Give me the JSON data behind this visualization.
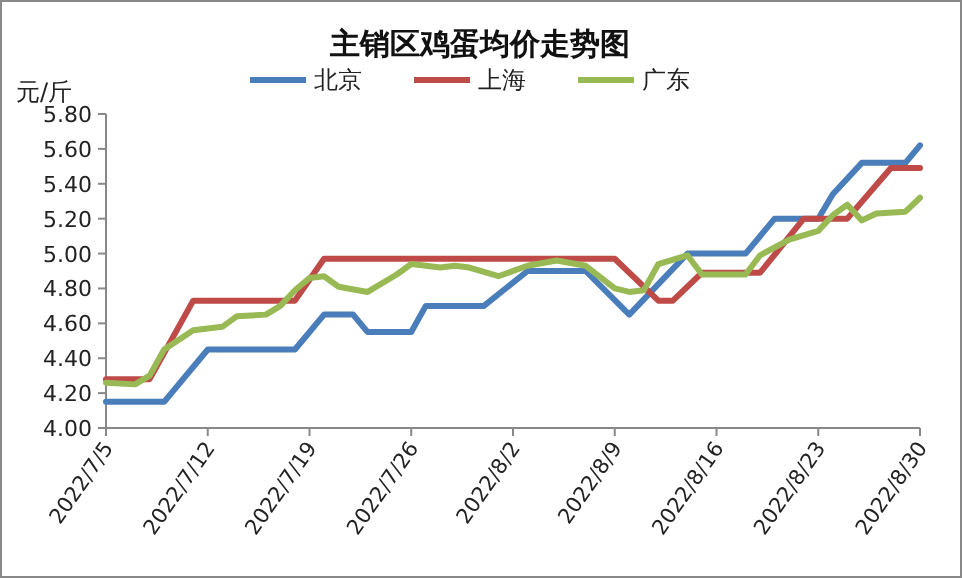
{
  "chart_data": {
    "type": "line",
    "title": "主销区鸡蛋均价走势图",
    "ylabel": "元/斤",
    "legend": "top",
    "grid": false,
    "marker": "none",
    "line_style": "solid",
    "xlim": [
      "2022-07-05",
      "2022-08-30"
    ],
    "xticks": [
      {
        "value": "2022-07-05",
        "label": "2022/7/5"
      },
      {
        "value": "2022-07-12",
        "label": "2022/7/12"
      },
      {
        "value": "2022-07-19",
        "label": "2022/7/19"
      },
      {
        "value": "2022-07-26",
        "label": "2022/7/26"
      },
      {
        "value": "2022-08-02",
        "label": "2022/8/2"
      },
      {
        "value": "2022-08-09",
        "label": "2022/8/9"
      },
      {
        "value": "2022-08-16",
        "label": "2022/8/16"
      },
      {
        "value": "2022-08-23",
        "label": "2022/8/23"
      },
      {
        "value": "2022-08-30",
        "label": "2022/8/30"
      }
    ],
    "ylim": [
      4.0,
      5.8
    ],
    "yticks": [
      {
        "value": 4.0,
        "label": "4.00"
      },
      {
        "value": 4.2,
        "label": "4.20"
      },
      {
        "value": 4.4,
        "label": "4.40"
      },
      {
        "value": 4.6,
        "label": "4.60"
      },
      {
        "value": 4.8,
        "label": "4.80"
      },
      {
        "value": 5.0,
        "label": "5.00"
      },
      {
        "value": 5.2,
        "label": "5.20"
      },
      {
        "value": 5.4,
        "label": "5.40"
      },
      {
        "value": 5.6,
        "label": "5.60"
      },
      {
        "value": 5.8,
        "label": "5.80"
      }
    ],
    "series": [
      {
        "name": "北京",
        "color": "#4a7ebb",
        "x": [
          "2022-07-05",
          "2022-07-09",
          "2022-07-12",
          "2022-07-18",
          "2022-07-20",
          "2022-07-22",
          "2022-07-23",
          "2022-07-26",
          "2022-07-27",
          "2022-07-31",
          "2022-08-03",
          "2022-08-07",
          "2022-08-10",
          "2022-08-14",
          "2022-08-18",
          "2022-08-20",
          "2022-08-23",
          "2022-08-24",
          "2022-08-26",
          "2022-08-29",
          "2022-08-30"
        ],
        "values": [
          4.15,
          4.15,
          4.45,
          4.45,
          4.65,
          4.65,
          4.55,
          4.55,
          4.7,
          4.7,
          4.9,
          4.9,
          4.65,
          5.0,
          5.0,
          5.2,
          5.2,
          5.34,
          5.52,
          5.52,
          5.62
        ]
      },
      {
        "name": "上海",
        "color": "#be4b48",
        "x": [
          "2022-07-05",
          "2022-07-08",
          "2022-07-11",
          "2022-07-18",
          "2022-07-20",
          "2022-08-09",
          "2022-08-12",
          "2022-08-13",
          "2022-08-15",
          "2022-08-19",
          "2022-08-22",
          "2022-08-25",
          "2022-08-28",
          "2022-08-30"
        ],
        "values": [
          4.28,
          4.28,
          4.73,
          4.73,
          4.97,
          4.97,
          4.73,
          4.73,
          4.89,
          4.89,
          5.2,
          5.2,
          5.49,
          5.49
        ]
      },
      {
        "name": "广东",
        "color": "#98b954",
        "x": [
          "2022-07-05",
          "2022-07-07",
          "2022-07-08",
          "2022-07-09",
          "2022-07-11",
          "2022-07-13",
          "2022-07-14",
          "2022-07-16",
          "2022-07-17",
          "2022-07-18",
          "2022-07-19",
          "2022-07-20",
          "2022-07-21",
          "2022-07-23",
          "2022-07-25",
          "2022-07-26",
          "2022-07-28",
          "2022-07-29",
          "2022-07-30",
          "2022-08-01",
          "2022-08-03",
          "2022-08-05",
          "2022-08-07",
          "2022-08-09",
          "2022-08-10",
          "2022-08-11",
          "2022-08-12",
          "2022-08-14",
          "2022-08-15",
          "2022-08-18",
          "2022-08-19",
          "2022-08-21",
          "2022-08-23",
          "2022-08-24",
          "2022-08-25",
          "2022-08-26",
          "2022-08-27",
          "2022-08-29",
          "2022-08-30"
        ],
        "values": [
          4.26,
          4.25,
          4.3,
          4.45,
          4.56,
          4.58,
          4.64,
          4.65,
          4.7,
          4.79,
          4.86,
          4.87,
          4.81,
          4.78,
          4.88,
          4.94,
          4.92,
          4.93,
          4.92,
          4.87,
          4.93,
          4.96,
          4.93,
          4.8,
          4.78,
          4.79,
          4.94,
          4.99,
          4.88,
          4.88,
          4.99,
          5.08,
          5.13,
          5.22,
          5.28,
          5.19,
          5.23,
          5.24,
          5.32
        ]
      }
    ]
  }
}
